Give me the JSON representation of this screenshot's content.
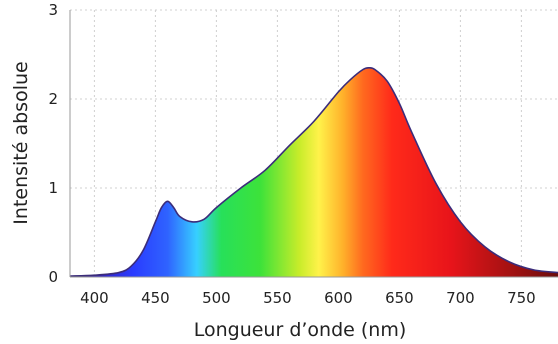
{
  "chart_data": {
    "type": "area",
    "title": "",
    "xlabel": "Longueur d’onde (nm)",
    "ylabel": "Intensité absolue",
    "xlim": [
      380,
      780
    ],
    "ylim": [
      0,
      3
    ],
    "x_ticks": [
      400,
      450,
      500,
      550,
      600,
      650,
      700,
      750
    ],
    "x_tick_labels": [
      "400",
      "450",
      "500",
      "550",
      "600",
      "650",
      "700",
      "750"
    ],
    "y_ticks": [
      0,
      1,
      2,
      3
    ],
    "y_tick_labels": [
      "0",
      "1",
      "2",
      "3"
    ],
    "grid": true,
    "fill": "visible-spectrum gradient",
    "series": [
      {
        "x": [
          380,
          400,
          420,
          430,
          440,
          450,
          455,
          460,
          465,
          470,
          480,
          490,
          500,
          520,
          540,
          560,
          580,
          600,
          610,
          620,
          625,
          630,
          640,
          650,
          660,
          680,
          700,
          720,
          740,
          760,
          780
        ],
        "y": [
          0.01,
          0.02,
          0.05,
          0.12,
          0.3,
          0.62,
          0.78,
          0.85,
          0.78,
          0.68,
          0.62,
          0.65,
          0.78,
          1.0,
          1.2,
          1.48,
          1.75,
          2.08,
          2.22,
          2.33,
          2.35,
          2.33,
          2.2,
          1.95,
          1.63,
          1.05,
          0.62,
          0.34,
          0.17,
          0.08,
          0.05
        ]
      }
    ]
  }
}
